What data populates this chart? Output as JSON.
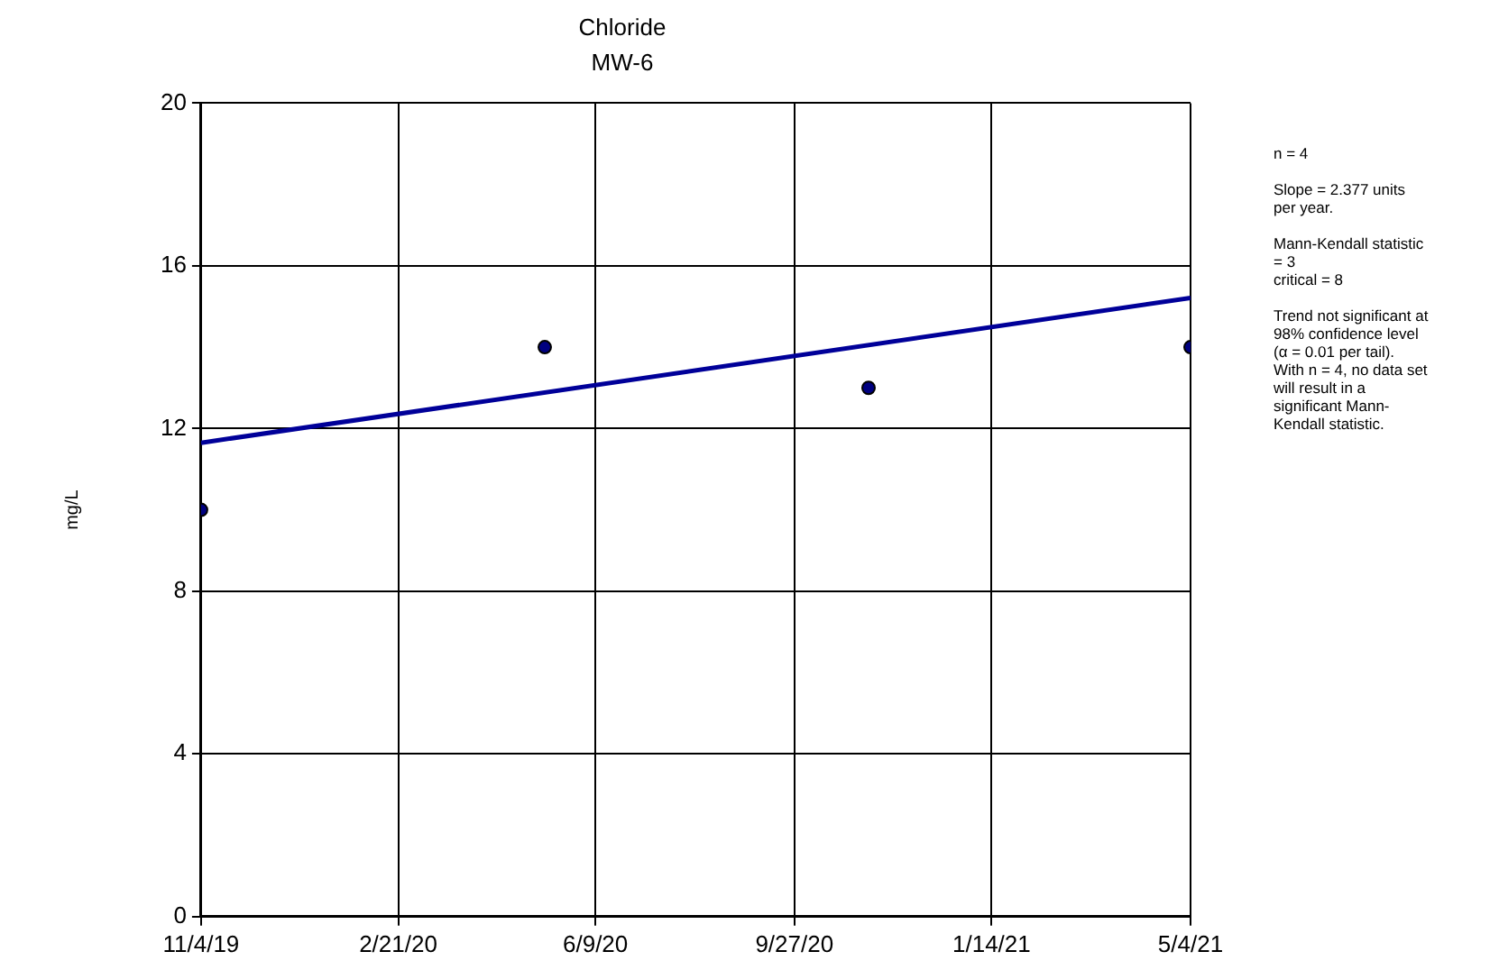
{
  "chart_data": {
    "type": "scatter",
    "title": "Chloride",
    "subtitle": "MW-6",
    "ylabel": "mg/L",
    "x": [
      "2019-11-04",
      "2020-05-12",
      "2020-11-07",
      "2021-05-04"
    ],
    "series": [
      {
        "color": "#000080",
        "values": [
          10,
          14,
          13,
          14
        ]
      },
      {
        "type": "line",
        "color": "#000099",
        "x": [
          "2019-11-04",
          "2021-05-04"
        ],
        "values": [
          11.65,
          15.21
        ],
        "marker": "none"
      }
    ],
    "xlim": [
      "2019-11-04",
      "2021-05-04"
    ],
    "xticks": [
      {
        "value": "2019-11-04",
        "label": "11/4/19"
      },
      {
        "value": "2020-02-21",
        "label": "2/21/20"
      },
      {
        "value": "2020-06-09",
        "label": "6/9/20"
      },
      {
        "value": "2020-09-27",
        "label": "9/27/20"
      },
      {
        "value": "2021-01-14",
        "label": "1/14/21"
      },
      {
        "value": "2021-05-04",
        "label": "5/4/21"
      }
    ],
    "ylim": [
      0,
      20
    ],
    "yticks": [
      0,
      4,
      8,
      12,
      16,
      20
    ],
    "grid": true,
    "legend": false,
    "marker": "circle",
    "annotations": [
      "n = 4",
      "Slope = 2.377 units per year.",
      "Mann-Kendall statistic = 3",
      "critical = 8",
      "Trend not significant at 98% confidence level (α = 0.01 per tail).",
      "With n = 4, no data set will result in a significant Mann-Kendall statistic."
    ]
  }
}
